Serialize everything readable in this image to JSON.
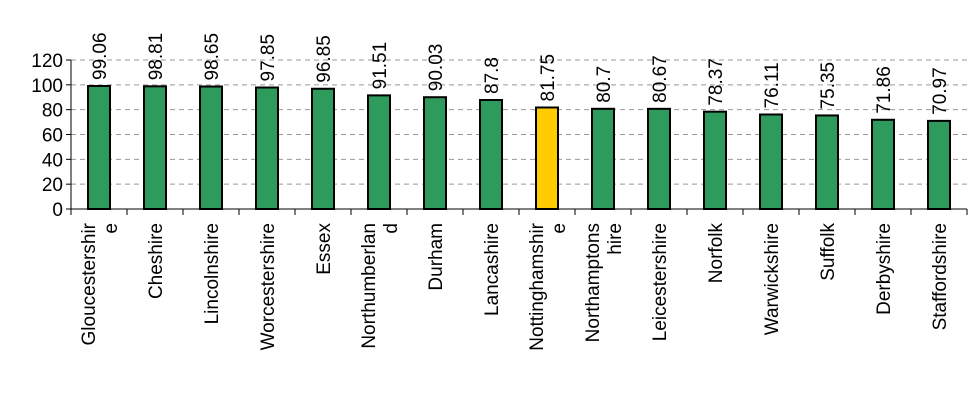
{
  "chart_data": {
    "type": "bar",
    "categories": [
      "Gloucestershire",
      "Cheshire",
      "Lincolnshire",
      "Worcestershire",
      "Essex",
      "Northumberland",
      "Durham",
      "Lancashire",
      "Nottinghamshire",
      "Northamptonshire",
      "Leicestershire",
      "Norfolk",
      "Warwickshire",
      "Suffolk",
      "Derbyshire",
      "Staffordshire"
    ],
    "category_label_lines": [
      [
        "Gloucestershir",
        "e"
      ],
      [
        "Cheshire"
      ],
      [
        "Lincolnshire"
      ],
      [
        "Worcestershire"
      ],
      [
        "Essex"
      ],
      [
        "Northumberlan",
        "d"
      ],
      [
        "Durham"
      ],
      [
        "Lancashire"
      ],
      [
        "Nottinghamshir",
        "e"
      ],
      [
        "Northamptons",
        "hire"
      ],
      [
        "Leicestershire"
      ],
      [
        "Norfolk"
      ],
      [
        "Warwickshire"
      ],
      [
        "Suffolk"
      ],
      [
        "Derbyshire"
      ],
      [
        "Staffordshire"
      ]
    ],
    "values": [
      99.06,
      98.81,
      98.65,
      97.85,
      96.85,
      91.51,
      90.03,
      87.8,
      81.75,
      80.7,
      80.67,
      78.37,
      76.11,
      75.35,
      71.86,
      70.97
    ],
    "data_labels": [
      "99.06",
      "98.81",
      "98.65",
      "97.85",
      "96.85",
      "91.51",
      "90.03",
      "87.8",
      "81.75",
      "80.7",
      "80.67",
      "78.37",
      "76.11",
      "75.35",
      "71.86",
      "70.97"
    ],
    "highlight_index": 8,
    "ylim": [
      0,
      120
    ],
    "yticks": [
      0,
      20,
      40,
      60,
      80,
      100,
      120
    ],
    "grid": true,
    "legend": "none",
    "title": "",
    "xlabel": "",
    "ylabel": "",
    "colors": {
      "bar": "#2e9a5c",
      "highlight": "#ffcc00",
      "outline": "#000000",
      "grid": "#999999"
    }
  }
}
